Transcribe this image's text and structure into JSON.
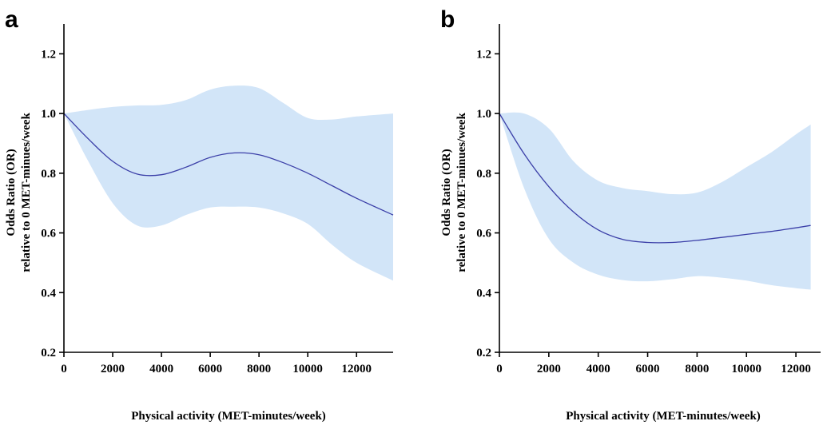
{
  "chart_data": [
    {
      "type": "line",
      "panel_label": "a",
      "xlabel": "Physical activity (MET-minutes/week)",
      "ylabel_line1": "Odds  Ratio (OR)",
      "ylabel_line2": "relative to 0 MET-minues/week",
      "xlim": [
        0,
        13500
      ],
      "ylim": [
        0.2,
        1.3
      ],
      "xticks": [
        0,
        2000,
        4000,
        6000,
        8000,
        10000,
        12000
      ],
      "yticks": [
        0.2,
        0.4,
        0.6,
        0.8,
        1.0,
        1.2
      ],
      "series": [
        {
          "name": "OR",
          "x": [
            0,
            1000,
            2000,
            3000,
            4000,
            5000,
            6000,
            7000,
            8000,
            9000,
            10000,
            11000,
            12000,
            13500
          ],
          "y": [
            1.0,
            0.915,
            0.84,
            0.797,
            0.795,
            0.82,
            0.853,
            0.868,
            0.862,
            0.835,
            0.8,
            0.758,
            0.716,
            0.66
          ]
        },
        {
          "name": "95% CI upper",
          "x": [
            0,
            1000,
            2000,
            3000,
            4000,
            5000,
            6000,
            7000,
            8000,
            9000,
            10000,
            11000,
            12000,
            13500
          ],
          "y": [
            1.0,
            1.012,
            1.022,
            1.027,
            1.029,
            1.045,
            1.08,
            1.093,
            1.085,
            1.035,
            0.985,
            0.98,
            0.99,
            1.0
          ]
        },
        {
          "name": "95% CI lower",
          "x": [
            0,
            1000,
            2000,
            3000,
            4000,
            5000,
            6000,
            7000,
            8000,
            9000,
            10000,
            11000,
            12000,
            13500
          ],
          "y": [
            1.0,
            0.84,
            0.7,
            0.625,
            0.625,
            0.66,
            0.685,
            0.688,
            0.685,
            0.665,
            0.63,
            0.56,
            0.5,
            0.44
          ]
        }
      ]
    },
    {
      "type": "line",
      "panel_label": "b",
      "xlabel": "Physical activity (MET-minutes/week)",
      "ylabel_line1": "Odds  Ratio (OR)",
      "ylabel_line2": "relative to 0 MET-minues/week",
      "xlim": [
        0,
        13000
      ],
      "ylim": [
        0.2,
        1.3
      ],
      "xticks": [
        0,
        2000,
        4000,
        6000,
        8000,
        10000,
        12000
      ],
      "yticks": [
        0.2,
        0.4,
        0.6,
        0.8,
        1.0,
        1.2
      ],
      "series": [
        {
          "name": "OR",
          "x": [
            0,
            1000,
            2000,
            3000,
            4000,
            5000,
            6000,
            7000,
            8000,
            9000,
            10000,
            11000,
            12000,
            12600
          ],
          "y": [
            1.0,
            0.865,
            0.755,
            0.67,
            0.61,
            0.578,
            0.568,
            0.568,
            0.575,
            0.585,
            0.595,
            0.605,
            0.617,
            0.625
          ]
        },
        {
          "name": "95% CI upper",
          "x": [
            0,
            1000,
            2000,
            3000,
            4000,
            5000,
            6000,
            7000,
            8000,
            9000,
            10000,
            11000,
            12000,
            12600
          ],
          "y": [
            1.0,
            1.0,
            0.95,
            0.84,
            0.775,
            0.75,
            0.74,
            0.73,
            0.735,
            0.77,
            0.82,
            0.87,
            0.93,
            0.963
          ]
        },
        {
          "name": "95% CI lower",
          "x": [
            0,
            1000,
            2000,
            3000,
            4000,
            5000,
            6000,
            7000,
            8000,
            9000,
            10000,
            11000,
            12000,
            12600
          ],
          "y": [
            1.0,
            0.75,
            0.58,
            0.5,
            0.46,
            0.442,
            0.438,
            0.445,
            0.455,
            0.45,
            0.44,
            0.425,
            0.415,
            0.41
          ]
        }
      ]
    }
  ]
}
